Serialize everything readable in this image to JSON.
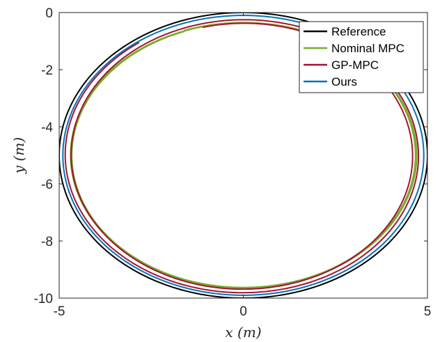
{
  "chart_data": {
    "type": "line",
    "xlabel": "x (m)",
    "ylabel": "y (m)",
    "xlim": [
      -5,
      5
    ],
    "ylim": [
      -10,
      0
    ],
    "xticks": [
      -5,
      0,
      5
    ],
    "yticks": [
      0,
      -2,
      -4,
      -6,
      -8,
      -10
    ],
    "grid": false,
    "legend_position": "top-right",
    "series": [
      {
        "name": "Reference",
        "color": "#000000",
        "shape": "ellipse",
        "center": [
          0,
          -5
        ],
        "radius_x": 5.0,
        "radius_y": 5.0
      },
      {
        "name": "Nominal MPC",
        "color": "#77ac30",
        "shape": "spiral",
        "center": [
          0,
          -5
        ],
        "radius_x_start": 4.72,
        "radius_x_end": 4.65,
        "radius_y_start": 4.65,
        "radius_y_end": 4.62,
        "start_angle_deg": 110,
        "turns": 2
      },
      {
        "name": "GP-MPC",
        "color": "#a2142f",
        "shape": "spiral",
        "center": [
          0,
          -5
        ],
        "radius_x_start": 4.55,
        "radius_x_end": 4.86,
        "radius_y_start": 4.62,
        "radius_y_end": 4.86,
        "start_angle_deg": 104,
        "turns": 1.94
      },
      {
        "name": "Ours",
        "color": "#0072bd",
        "shape": "ellipse",
        "center": [
          0,
          -5
        ],
        "radius_x": 4.9,
        "radius_y": 4.9
      }
    ]
  }
}
